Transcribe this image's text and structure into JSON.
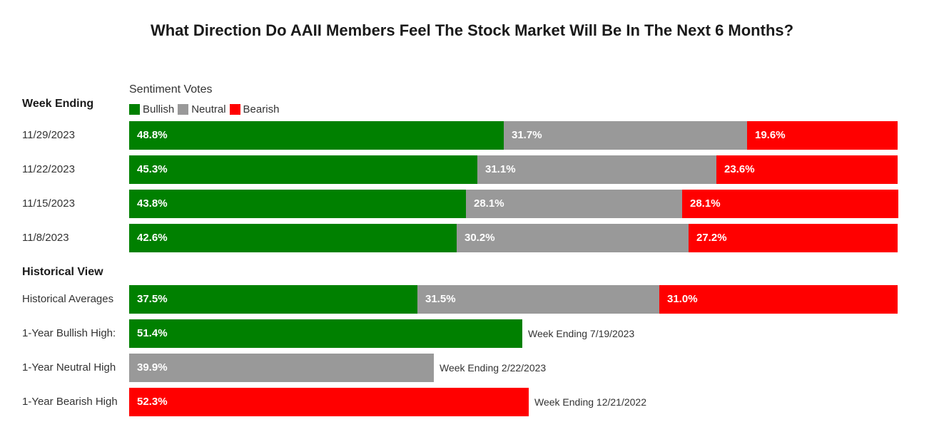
{
  "colors": {
    "bullish": "#008000",
    "neutral": "#999999",
    "bearish": "#ff0000"
  },
  "chart_data": {
    "type": "bar",
    "title": "What Direction Do AAII Members Feel The Stock Market Will Be In The Next 6 Months?",
    "legend_title": "Sentiment Votes",
    "legend_placement": "top-left",
    "series_names": [
      "Bullish",
      "Neutral",
      "Bearish"
    ],
    "sections": {
      "weekly": "Week Ending",
      "historical": "Historical View"
    },
    "weekly_rows": [
      {
        "label": "11/29/2023",
        "values": [
          48.8,
          31.7,
          19.6
        ],
        "texts": [
          "48.8%",
          "31.7%",
          "19.6%"
        ]
      },
      {
        "label": "11/22/2023",
        "values": [
          45.3,
          31.1,
          23.6
        ],
        "texts": [
          "45.3%",
          "31.1%",
          "23.6%"
        ]
      },
      {
        "label": "11/15/2023",
        "values": [
          43.8,
          28.1,
          28.1
        ],
        "texts": [
          "43.8%",
          "28.1%",
          "28.1%"
        ]
      },
      {
        "label": "11/8/2023",
        "values": [
          42.6,
          30.2,
          27.2
        ],
        "texts": [
          "42.6%",
          "30.2%",
          "27.2%"
        ]
      }
    ],
    "historical_averages": {
      "label": "Historical Averages",
      "values": [
        37.5,
        31.5,
        31.0
      ],
      "texts": [
        "37.5%",
        "31.5%",
        "31.0%"
      ]
    },
    "highs": [
      {
        "label": "1-Year Bullish High:",
        "series": "Bullish",
        "value": 51.4,
        "text": "51.4%",
        "note": "Week Ending 7/19/2023"
      },
      {
        "label": "1-Year Neutral High",
        "series": "Neutral",
        "value": 39.9,
        "text": "39.9%",
        "note": "Week Ending 2/22/2023"
      },
      {
        "label": "1-Year Bearish High",
        "series": "Bearish",
        "value": 52.3,
        "text": "52.3%",
        "note": "Week Ending 12/21/2022"
      }
    ]
  }
}
